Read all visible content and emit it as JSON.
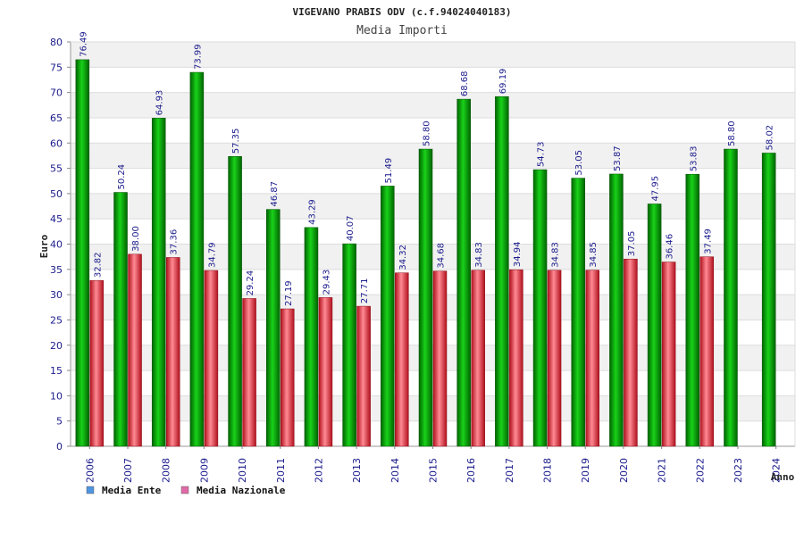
{
  "chart_data": {
    "type": "bar",
    "title": "VIGEVANO PRABIS ODV (c.f.94024040183)",
    "subtitle": "Media Importi",
    "xlabel": "Anno",
    "ylabel": "Euro",
    "ylim": [
      0,
      80
    ],
    "yticks": [
      0,
      5,
      10,
      15,
      20,
      25,
      30,
      35,
      40,
      45,
      50,
      55,
      60,
      65,
      70,
      75,
      80
    ],
    "grid": true,
    "legend_position": "bottom-left",
    "categories": [
      "2006",
      "2007",
      "2008",
      "2009",
      "2010",
      "2011",
      "2012",
      "2013",
      "2014",
      "2015",
      "2016",
      "2017",
      "2018",
      "2019",
      "2020",
      "2021",
      "2022",
      "2023",
      "2024"
    ],
    "series": [
      {
        "name": "Media Ente",
        "bar_color": "#00a000",
        "legend_color": "#4f94e0",
        "values": [
          76.49,
          50.24,
          64.93,
          73.99,
          57.35,
          46.87,
          43.29,
          40.07,
          51.49,
          58.8,
          68.68,
          69.19,
          54.73,
          53.05,
          53.87,
          47.95,
          53.83,
          58.8,
          58.02
        ],
        "labels": [
          "76.49",
          "50.24",
          "64.93",
          "73.99",
          "57.35",
          "46.87",
          "43.29",
          "40.07",
          "51.49",
          "58.80",
          "68.68",
          "69.19",
          "54.73",
          "53.05",
          "53.87",
          "47.95",
          "53.83",
          "58.80",
          "58.02"
        ]
      },
      {
        "name": "Media Nazionale",
        "bar_color": "#e0202e",
        "legend_color": "#e06aa8",
        "values": [
          32.82,
          38.0,
          37.36,
          34.79,
          29.24,
          27.19,
          29.43,
          27.71,
          34.32,
          34.68,
          34.83,
          34.94,
          34.83,
          34.85,
          37.05,
          36.46,
          37.49,
          null,
          null
        ],
        "labels": [
          "32.82",
          "38.00",
          "37.36",
          "34.79",
          "29.24",
          "27.19",
          "29.43",
          "27.71",
          "34.32",
          "34.68",
          "34.83",
          "34.94",
          "34.83",
          "34.85",
          "37.05",
          "36.46",
          "37.49",
          "",
          ""
        ]
      }
    ]
  }
}
